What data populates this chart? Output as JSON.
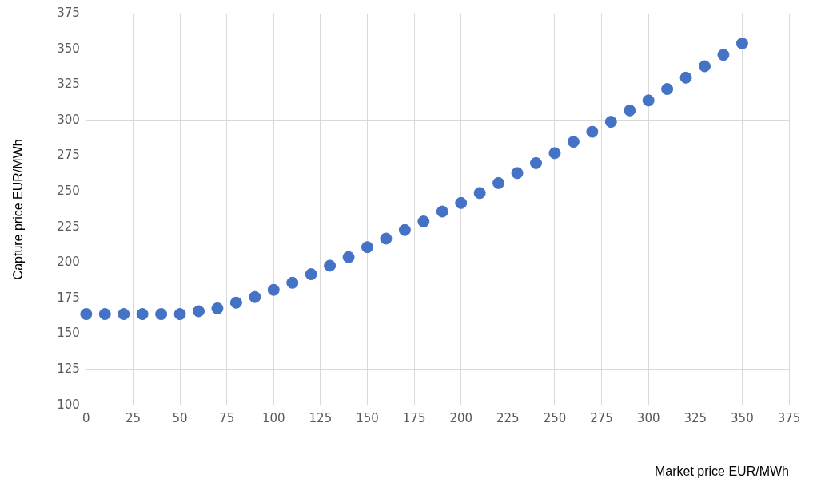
{
  "chart_data": {
    "type": "scatter",
    "xlabel": "Market price EUR/MWh",
    "ylabel": "Capture price EUR/MWh",
    "x": [
      0,
      10,
      20,
      30,
      40,
      50,
      60,
      70,
      80,
      90,
      100,
      110,
      120,
      130,
      140,
      150,
      160,
      170,
      180,
      190,
      200,
      210,
      220,
      230,
      240,
      250,
      260,
      270,
      280,
      290,
      300,
      310,
      320,
      330,
      340,
      350
    ],
    "series": [
      {
        "color": "#4472c4",
        "values": [
          164,
          164,
          164,
          164,
          164,
          164,
          166,
          168,
          172,
          176,
          181,
          186,
          192,
          198,
          204,
          211,
          217,
          223,
          229,
          236,
          242,
          249,
          256,
          263,
          270,
          277,
          285,
          292,
          299,
          307,
          314,
          322,
          330,
          338,
          346,
          354
        ]
      }
    ],
    "xlim": [
      0,
      375
    ],
    "xticks": [
      0,
      25,
      50,
      75,
      100,
      125,
      150,
      175,
      200,
      225,
      250,
      275,
      300,
      325,
      350,
      375
    ],
    "ylim": [
      100,
      375
    ],
    "yticks": [
      100,
      125,
      150,
      175,
      200,
      225,
      250,
      275,
      300,
      325,
      350,
      375
    ],
    "grid": true,
    "legend": false,
    "marker": "circle"
  }
}
